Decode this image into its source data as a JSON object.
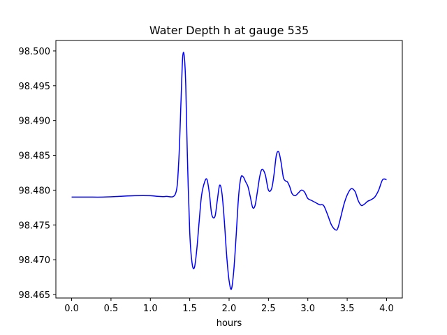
{
  "chart_data": {
    "type": "line",
    "title": "Water Depth h at gauge 535",
    "xlabel": "hours",
    "ylabel": "",
    "xlim": [
      -0.2,
      4.2
    ],
    "ylim": [
      98.4645,
      98.5015
    ],
    "xticks": [
      0.0,
      0.5,
      1.0,
      1.5,
      2.0,
      2.5,
      3.0,
      3.5,
      4.0
    ],
    "xtick_labels": [
      "0.0",
      "0.5",
      "1.0",
      "1.5",
      "2.0",
      "2.5",
      "3.0",
      "3.5",
      "4.0"
    ],
    "yticks": [
      98.465,
      98.47,
      98.475,
      98.48,
      98.485,
      98.49,
      98.495,
      98.5
    ],
    "ytick_labels": [
      "98.465",
      "98.470",
      "98.475",
      "98.480",
      "98.485",
      "98.490",
      "98.495",
      "98.500"
    ],
    "grid": false,
    "series": [
      {
        "color": "#0000ff",
        "x": [
          0.0,
          0.2,
          0.4,
          0.6,
          0.8,
          1.0,
          1.1,
          1.2,
          1.32,
          1.36,
          1.39,
          1.41,
          1.43,
          1.45,
          1.47,
          1.5,
          1.53,
          1.56,
          1.59,
          1.62,
          1.65,
          1.69,
          1.72,
          1.75,
          1.78,
          1.82,
          1.85,
          1.88,
          1.91,
          1.94,
          1.97,
          2.0,
          2.03,
          2.06,
          2.09,
          2.12,
          2.15,
          2.18,
          2.21,
          2.24,
          2.27,
          2.3,
          2.33,
          2.36,
          2.39,
          2.42,
          2.46,
          2.5,
          2.54,
          2.57,
          2.6,
          2.63,
          2.66,
          2.69,
          2.72,
          2.74,
          2.77,
          2.8,
          2.84,
          2.88,
          2.92,
          2.96,
          3.0,
          3.05,
          3.1,
          3.15,
          3.2,
          3.25,
          3.3,
          3.35,
          3.38,
          3.42,
          3.46,
          3.5,
          3.55,
          3.6,
          3.64,
          3.68,
          3.72,
          3.76,
          3.8,
          3.85,
          3.9,
          3.95,
          4.0
        ],
        "y": [
          98.479,
          98.479,
          98.479,
          98.4791,
          98.4792,
          98.4792,
          98.4791,
          98.4791,
          98.4795,
          98.484,
          98.493,
          98.499,
          98.4993,
          98.495,
          98.485,
          98.474,
          98.4695,
          98.4689,
          98.4715,
          98.4755,
          98.4792,
          98.4812,
          98.4815,
          98.4795,
          98.4765,
          98.4762,
          98.4785,
          98.4807,
          98.4795,
          98.4755,
          98.4705,
          98.467,
          98.4658,
          98.4685,
          98.4735,
          98.479,
          98.4818,
          98.4819,
          98.4812,
          98.4805,
          98.479,
          98.4775,
          98.4778,
          98.4798,
          98.482,
          98.483,
          98.4822,
          98.48,
          98.4802,
          98.4822,
          98.485,
          98.4855,
          98.484,
          98.4818,
          98.4813,
          98.4812,
          98.4805,
          98.4795,
          98.4792,
          98.4796,
          98.48,
          98.4797,
          98.4788,
          98.4785,
          98.4782,
          98.4779,
          98.4778,
          98.4765,
          98.475,
          98.4743,
          98.4745,
          98.4762,
          98.478,
          98.4793,
          98.4802,
          98.4798,
          98.4785,
          98.4778,
          98.478,
          98.4784,
          98.4786,
          98.479,
          98.48,
          98.4815,
          98.4815
        ]
      }
    ]
  }
}
